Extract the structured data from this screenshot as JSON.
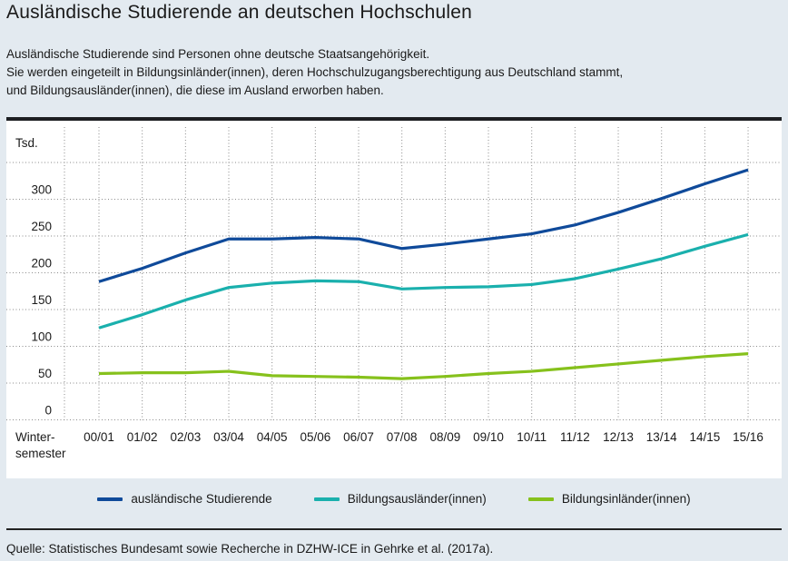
{
  "title": "Ausländische Studierende an deutschen Hochschulen",
  "subtitle": [
    "Ausländische Studierende sind Personen ohne deutsche Staatsangehörigkeit.",
    "Sie werden eingeteilt in Bildungsinländer(innen), deren Hochschulzugangsberechtigung aus Deutschland stammt,",
    "und Bildungsausländer(innen), die diese im Ausland erworben haben."
  ],
  "source": "Quelle: Statistisches Bundesamt sowie Recherche in DZHW-ICE in Gehrke et al. (2017a).",
  "chart_data": {
    "type": "line",
    "ylabel": "Tsd.",
    "xlabel": [
      "Winter-",
      "semester"
    ],
    "ylim": [
      0,
      350
    ],
    "yticks": [
      0,
      50,
      100,
      150,
      200,
      250,
      300
    ],
    "grid": true,
    "legend_position": "bottom-center",
    "categories": [
      "00/01",
      "01/02",
      "02/03",
      "03/04",
      "04/05",
      "05/06",
      "06/07",
      "07/08",
      "08/09",
      "09/10",
      "10/11",
      "11/12",
      "12/13",
      "13/14",
      "14/15",
      "15/16"
    ],
    "series": [
      {
        "name": "ausländische Studierende",
        "color": "#0f4a9a",
        "values": [
          188,
          206,
          227,
          246,
          246,
          248,
          246,
          233,
          239,
          246,
          253,
          265,
          282,
          301,
          321,
          340
        ]
      },
      {
        "name": "Bildungsausländer(innen)",
        "color": "#1ab0ad",
        "values": [
          125,
          143,
          163,
          180,
          186,
          189,
          188,
          178,
          180,
          181,
          184,
          192,
          205,
          219,
          236,
          252
        ]
      },
      {
        "name": "Bildungsinländer(innen)",
        "color": "#86c11c",
        "values": [
          63,
          64,
          64,
          66,
          60,
          59,
          58,
          56,
          59,
          63,
          66,
          71,
          76,
          81,
          86,
          90
        ]
      }
    ]
  }
}
